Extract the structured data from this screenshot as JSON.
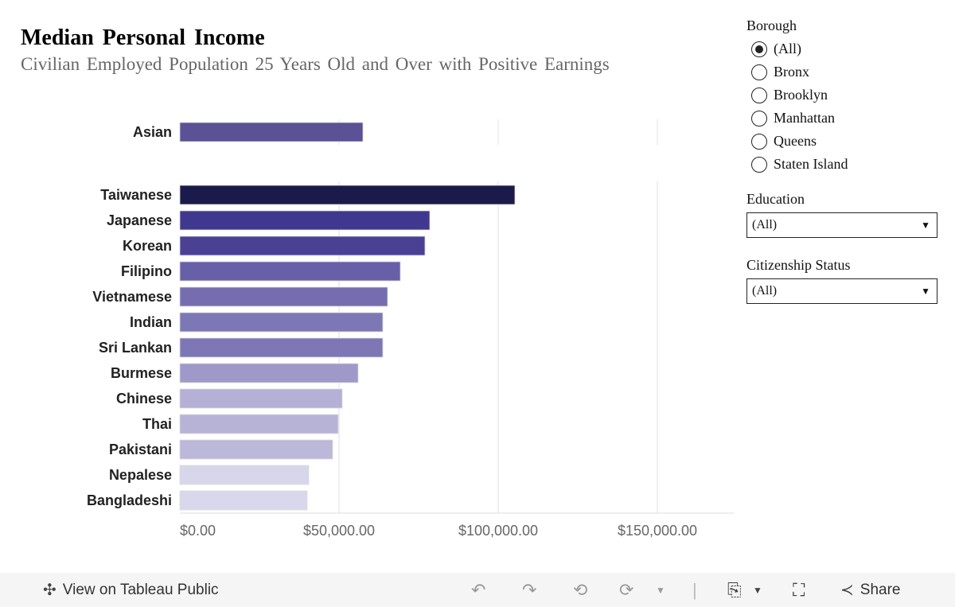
{
  "header": {
    "title": "Median Personal Income",
    "subtitle": "Civilian Employed Population 25 Years Old and Over with Positive Earnings"
  },
  "chart_data": {
    "type": "bar",
    "orientation": "horizontal",
    "title": "Median Personal Income",
    "subtitle": "Civilian Employed Population 25 Years Old and Over with Positive Earnings",
    "xlim": [
      0,
      175000
    ],
    "x_ticks": [
      0,
      50000,
      100000,
      150000
    ],
    "x_tick_labels": [
      "$0.00",
      "$50,000.00",
      "$100,000.00",
      "$150,000.00"
    ],
    "grid": true,
    "groups": [
      {
        "categories": [
          "Asian"
        ],
        "values": [
          57500
        ],
        "colors": [
          "#5a5197"
        ]
      },
      {
        "categories": [
          "Taiwanese",
          "Japanese",
          "Korean",
          "Filipino",
          "Vietnamese",
          "Indian",
          "Sri Lankan",
          "Burmese",
          "Chinese",
          "Thai",
          "Pakistani",
          "Nepalese",
          "Bangladeshi"
        ],
        "values": [
          105250,
          78500,
          77000,
          69250,
          65250,
          63750,
          63750,
          56000,
          51000,
          49750,
          48000,
          40500,
          40000
        ],
        "colors": [
          "#1c1a4a",
          "#40388e",
          "#4a4195",
          "#675fa8",
          "#756db0",
          "#7e77b6",
          "#7e77b6",
          "#9e99c9",
          "#b4b0d6",
          "#b7b3d7",
          "#bcb8da",
          "#d8d6ea",
          "#d9d7eb"
        ]
      }
    ]
  },
  "filters": {
    "borough": {
      "label": "Borough",
      "options": [
        "(All)",
        "Bronx",
        "Brooklyn",
        "Manhattan",
        "Queens",
        "Staten Island"
      ],
      "selected": "(All)"
    },
    "education": {
      "label": "Education",
      "value": "(All)"
    },
    "citizenship": {
      "label": "Citizenship Status",
      "value": "(All)"
    }
  },
  "footer": {
    "view_label": "View on Tableau Public",
    "share_label": "Share"
  }
}
